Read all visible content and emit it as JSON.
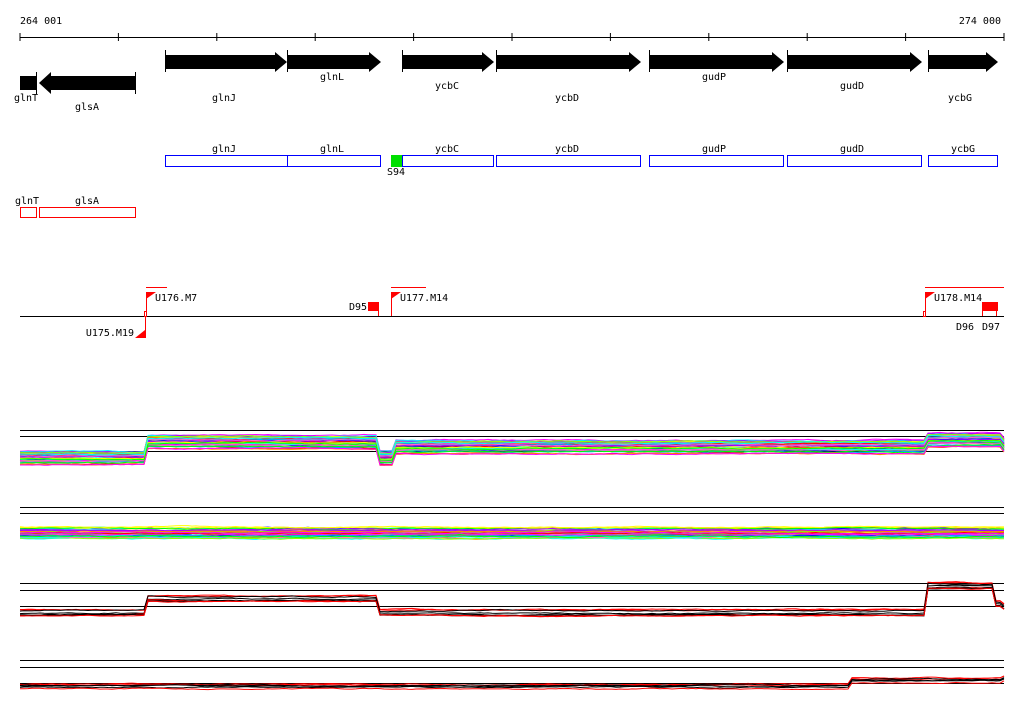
{
  "axis": {
    "start_label": "264 001",
    "end_label": "274 000"
  },
  "genes": {
    "forward": [
      {
        "name": "glnJ"
      },
      {
        "name": "glnL"
      },
      {
        "name": "ycbC"
      },
      {
        "name": "ycbD"
      },
      {
        "name": "gudP"
      },
      {
        "name": "gudD"
      },
      {
        "name": "ycbG"
      }
    ],
    "reverse": [
      {
        "name": "glnT"
      },
      {
        "name": "glsA"
      }
    ]
  },
  "operons_forward": [
    {
      "name": "glnJ"
    },
    {
      "name": "glnL"
    },
    {
      "name": "ycbC"
    },
    {
      "name": "ycbD"
    },
    {
      "name": "gudP"
    },
    {
      "name": "gudD"
    },
    {
      "name": "ycbG"
    }
  ],
  "promoter": {
    "name": "S94",
    "color": "#00e000"
  },
  "operons_reverse": [
    {
      "name": "glnT"
    },
    {
      "name": "glsA"
    }
  ],
  "features": [
    {
      "name": "U175.M19"
    },
    {
      "name": "U176.M7"
    },
    {
      "name": "D95"
    },
    {
      "name": "U177.M14"
    },
    {
      "name": "U178.M14"
    },
    {
      "name": "D96"
    },
    {
      "name": "D97"
    }
  ],
  "colors": {
    "forward_box": "#0000ff",
    "reverse_box": "#ff0000",
    "feature": "#ff0000",
    "gene": "#000000"
  }
}
